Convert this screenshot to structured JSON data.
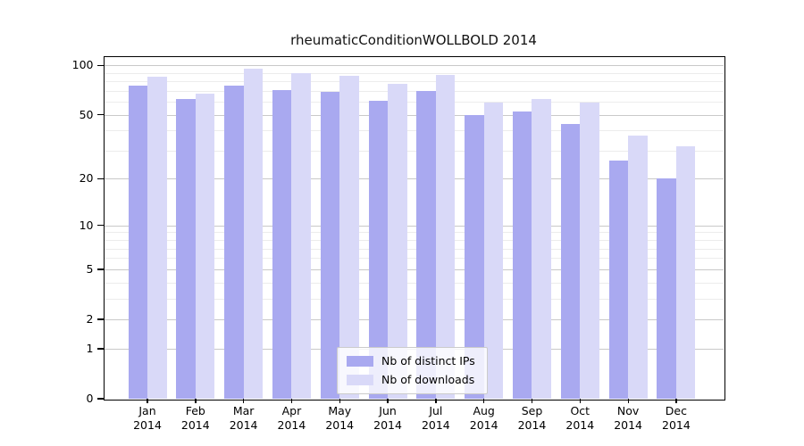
{
  "chart_data": {
    "type": "bar",
    "title": "rheumaticConditionWOLLBOLD 2014",
    "categories": [
      "Jan 2014",
      "Feb 2014",
      "Mar 2014",
      "Apr 2014",
      "May 2014",
      "Jun 2014",
      "Jul 2014",
      "Aug 2014",
      "Sep 2014",
      "Oct 2014",
      "Nov 2014",
      "Dec 2014"
    ],
    "series": [
      {
        "name": "Nb of distinct IPs",
        "color": "#a9a9f0",
        "values": [
          75,
          62,
          75,
          71,
          69,
          61,
          70,
          50,
          52,
          44,
          26,
          20
        ]
      },
      {
        "name": "Nb of downloads",
        "color": "#d9d9f8",
        "values": [
          85,
          67,
          95,
          90,
          86,
          77,
          87,
          59,
          62,
          59,
          37,
          32
        ]
      }
    ],
    "xlabel": "",
    "ylabel": "",
    "yscale": "log1p",
    "ylim": [
      0,
      100
    ],
    "y_tick_labels": [
      "100",
      "50",
      "20",
      "10",
      "5",
      "2",
      "1",
      "0"
    ],
    "y_minor_gridlines": [
      90,
      80,
      70,
      60,
      40,
      30,
      9,
      8,
      7,
      6,
      4,
      3
    ],
    "grid": true,
    "legend_position": "lower center",
    "plot_background": "#ffffff"
  }
}
